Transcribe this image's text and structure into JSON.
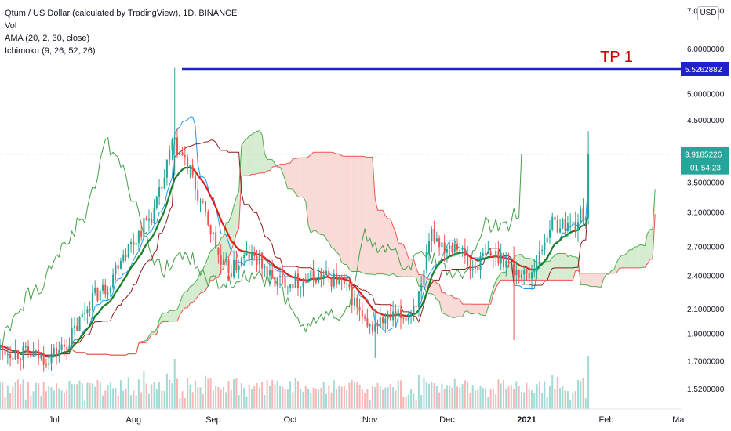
{
  "legend": {
    "symbol": "Qtum / US Dollar (calculated by TradingView), 1D, BINANCE",
    "vol": "Vol",
    "ama": "AMA (20, 2, 30, close)",
    "ichimoku": "Ichimoku (9, 26, 52, 26)"
  },
  "currency_button": "USD",
  "annotation": {
    "label": "TP 1",
    "price_label": "5.5262882",
    "color": "#cc0000",
    "line_color": "#1e22c8"
  },
  "last_price": {
    "label": "3.9185226",
    "countdown": "01:54:23",
    "color": "#26a69a"
  },
  "colors": {
    "up": "#26a69a",
    "down": "#ef5350",
    "ama_up": "#1a7f2a",
    "ama_down": "#e0201d",
    "cloud_bull": "#c8e6c0",
    "cloud_bear": "#f8cdc8"
  },
  "chart_data": {
    "type": "candlestick",
    "symbol": "Qtum / US Dollar",
    "interval": "1D",
    "exchange": "BINANCE",
    "y_scale": "log",
    "ylim": [
      1.4,
      7.3
    ],
    "y_ticks": [
      7.0,
      6.0,
      5.0,
      4.5,
      3.9,
      3.5,
      3.1,
      2.7,
      2.4,
      2.1,
      1.9,
      1.7,
      1.52
    ],
    "y_tick_labels": [
      "7.0000000",
      "6.0000000",
      "5.0000000",
      "4.5000000",
      "",
      "3.5000000",
      "3.1000000",
      "2.7000000",
      "2.4000000",
      "2.1000000",
      "1.9000000",
      "1.7000000",
      "1.5200000"
    ],
    "x_start": "2020-06-10",
    "x_end": "2021-03-02",
    "x_ticks": [
      "2020-07-01",
      "2020-08-01",
      "2020-09-01",
      "2020-10-01",
      "2020-11-01",
      "2020-12-01",
      "2021-01-01",
      "2021-02-01",
      "2021-03-01"
    ],
    "x_tick_labels": [
      "Jul",
      "Aug",
      "Sep",
      "Oct",
      "Nov",
      "Dec",
      "2021",
      "Feb",
      "Ma"
    ],
    "anchors": [
      [
        "2020-06-10",
        1.78
      ],
      [
        "2020-06-20",
        1.75
      ],
      [
        "2020-06-28",
        1.72
      ],
      [
        "2020-07-05",
        1.8
      ],
      [
        "2020-07-10",
        1.95
      ],
      [
        "2020-07-16",
        2.2
      ],
      [
        "2020-07-22",
        2.3
      ],
      [
        "2020-07-27",
        2.6
      ],
      [
        "2020-08-01",
        2.75
      ],
      [
        "2020-08-05",
        2.95
      ],
      [
        "2020-08-09",
        3.1
      ],
      [
        "2020-08-13",
        3.55
      ],
      [
        "2020-08-16",
        4.1
      ],
      [
        "2020-08-18",
        4.0
      ],
      [
        "2020-08-22",
        3.75
      ],
      [
        "2020-08-26",
        3.3
      ],
      [
        "2020-08-29",
        3.05
      ],
      [
        "2020-09-01",
        2.8
      ],
      [
        "2020-09-04",
        2.5
      ],
      [
        "2020-09-08",
        2.45
      ],
      [
        "2020-09-14",
        2.6
      ],
      [
        "2020-09-19",
        2.55
      ],
      [
        "2020-09-24",
        2.35
      ],
      [
        "2020-09-30",
        2.35
      ],
      [
        "2020-10-06",
        2.35
      ],
      [
        "2020-10-12",
        2.4
      ],
      [
        "2020-10-20",
        2.35
      ],
      [
        "2020-10-25",
        2.2
      ],
      [
        "2020-10-31",
        1.92
      ],
      [
        "2020-11-04",
        1.98
      ],
      [
        "2020-11-10",
        2.02
      ],
      [
        "2020-11-16",
        2.05
      ],
      [
        "2020-11-21",
        2.25
      ],
      [
        "2020-11-25",
        2.85
      ],
      [
        "2020-11-30",
        2.7
      ],
      [
        "2020-12-05",
        2.75
      ],
      [
        "2020-12-10",
        2.45
      ],
      [
        "2020-12-16",
        2.6
      ],
      [
        "2020-12-22",
        2.6
      ],
      [
        "2020-12-27",
        2.45
      ],
      [
        "2021-01-02",
        2.4
      ],
      [
        "2021-01-06",
        2.6
      ],
      [
        "2021-01-10",
        2.95
      ],
      [
        "2021-01-15",
        2.95
      ],
      [
        "2021-01-20",
        2.95
      ],
      [
        "2021-01-23",
        3.1
      ],
      [
        "2021-01-24",
        3.05
      ],
      [
        "2021-01-25",
        3.92
      ]
    ],
    "spikes": [
      {
        "date": "2020-08-17",
        "high": 5.55,
        "low": 3.6
      },
      {
        "date": "2021-01-25",
        "high": 4.3,
        "low": 2.95
      },
      {
        "date": "2020-12-27",
        "high": 2.7,
        "low": 1.85
      },
      {
        "date": "2020-11-03",
        "high": 2.1,
        "low": 1.72
      }
    ],
    "tp1_level": 5.5262882,
    "last_price": 3.9185226
  }
}
